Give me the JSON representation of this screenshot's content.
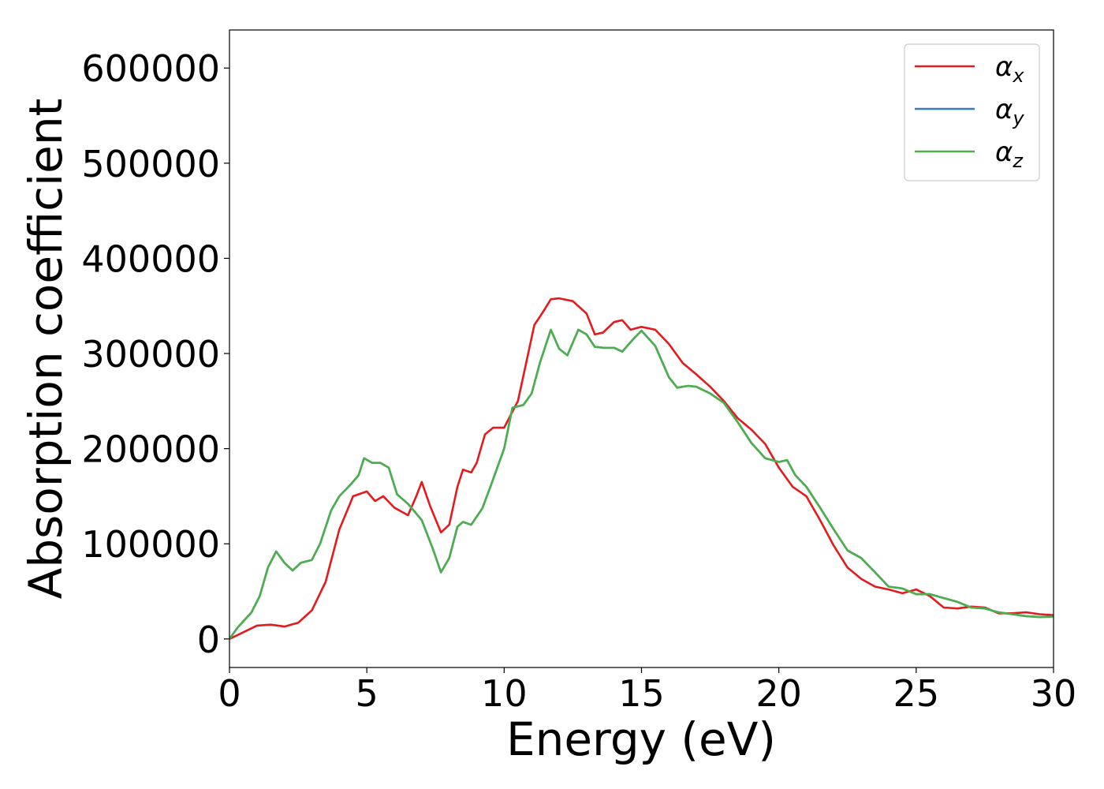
{
  "chart_data": {
    "type": "line",
    "xlabel": "Energy (eV)",
    "ylabel": "Absorption coefficient",
    "xlim": [
      0,
      30
    ],
    "ylim": [
      -30000,
      640000
    ],
    "xticks": [
      "0",
      "5",
      "10",
      "15",
      "20",
      "25",
      "30"
    ],
    "xtick_values": [
      0,
      5,
      10,
      15,
      20,
      25,
      30
    ],
    "yticks": [
      "0",
      "100000",
      "200000",
      "300000",
      "400000",
      "500000",
      "600000"
    ],
    "ytick_values": [
      0,
      100000,
      200000,
      300000,
      400000,
      500000,
      600000
    ],
    "grid": false,
    "legend_position": "top-right",
    "series": [
      {
        "name": "α_x",
        "legend_symbol": "α",
        "legend_sub": "x",
        "color": "#e41a1c",
        "points": [
          [
            0,
            0
          ],
          [
            0.5,
            7000
          ],
          [
            1.0,
            14000
          ],
          [
            1.5,
            15000
          ],
          [
            2.0,
            13000
          ],
          [
            2.5,
            17000
          ],
          [
            3.0,
            30000
          ],
          [
            3.5,
            60000
          ],
          [
            4.0,
            115000
          ],
          [
            4.5,
            150000
          ],
          [
            5.0,
            155000
          ],
          [
            5.3,
            145000
          ],
          [
            5.6,
            150000
          ],
          [
            6.0,
            138000
          ],
          [
            6.5,
            130000
          ],
          [
            6.8,
            150000
          ],
          [
            7.0,
            165000
          ],
          [
            7.3,
            140000
          ],
          [
            7.7,
            112000
          ],
          [
            8.0,
            120000
          ],
          [
            8.3,
            160000
          ],
          [
            8.5,
            178000
          ],
          [
            8.8,
            175000
          ],
          [
            9.0,
            185000
          ],
          [
            9.3,
            215000
          ],
          [
            9.6,
            222000
          ],
          [
            10.0,
            222000
          ],
          [
            10.5,
            250000
          ],
          [
            10.8,
            290000
          ],
          [
            11.1,
            330000
          ],
          [
            11.4,
            343000
          ],
          [
            11.7,
            357000
          ],
          [
            12.0,
            358000
          ],
          [
            12.5,
            355000
          ],
          [
            13.0,
            342000
          ],
          [
            13.3,
            320000
          ],
          [
            13.6,
            322000
          ],
          [
            14.0,
            333000
          ],
          [
            14.3,
            335000
          ],
          [
            14.6,
            325000
          ],
          [
            15.0,
            328000
          ],
          [
            15.5,
            325000
          ],
          [
            16.0,
            310000
          ],
          [
            16.5,
            290000
          ],
          [
            17.0,
            278000
          ],
          [
            17.5,
            265000
          ],
          [
            18.0,
            250000
          ],
          [
            18.5,
            232000
          ],
          [
            19.0,
            220000
          ],
          [
            19.5,
            205000
          ],
          [
            20.0,
            180000
          ],
          [
            20.5,
            160000
          ],
          [
            21.0,
            150000
          ],
          [
            21.5,
            125000
          ],
          [
            22.0,
            98000
          ],
          [
            22.5,
            75000
          ],
          [
            23.0,
            63000
          ],
          [
            23.5,
            55000
          ],
          [
            24.0,
            52000
          ],
          [
            24.5,
            48000
          ],
          [
            25.0,
            52000
          ],
          [
            25.5,
            45000
          ],
          [
            26.0,
            33000
          ],
          [
            26.5,
            32000
          ],
          [
            27.0,
            34000
          ],
          [
            27.5,
            33000
          ],
          [
            28.0,
            27000
          ],
          [
            28.5,
            27000
          ],
          [
            29.0,
            28000
          ],
          [
            29.5,
            26000
          ],
          [
            30.0,
            25000
          ]
        ]
      },
      {
        "name": "α_y",
        "legend_symbol": "α",
        "legend_sub": "y",
        "color": "#377eb8",
        "points": [
          [
            0,
            0
          ],
          [
            0.3,
            12000
          ],
          [
            0.8,
            28000
          ],
          [
            1.1,
            45000
          ],
          [
            1.4,
            75000
          ],
          [
            1.7,
            92000
          ],
          [
            2.0,
            80000
          ],
          [
            2.3,
            72000
          ],
          [
            2.6,
            80000
          ],
          [
            3.0,
            83000
          ],
          [
            3.3,
            100000
          ],
          [
            3.7,
            135000
          ],
          [
            4.0,
            150000
          ],
          [
            4.4,
            162000
          ],
          [
            4.7,
            172000
          ],
          [
            4.9,
            190000
          ],
          [
            5.2,
            185000
          ],
          [
            5.5,
            185000
          ],
          [
            5.8,
            180000
          ],
          [
            6.1,
            152000
          ],
          [
            6.5,
            142000
          ],
          [
            7.0,
            125000
          ],
          [
            7.4,
            95000
          ],
          [
            7.7,
            70000
          ],
          [
            8.0,
            85000
          ],
          [
            8.3,
            118000
          ],
          [
            8.5,
            123000
          ],
          [
            8.8,
            120000
          ],
          [
            9.2,
            137000
          ],
          [
            9.5,
            160000
          ],
          [
            10.0,
            200000
          ],
          [
            10.3,
            243000
          ],
          [
            10.7,
            246000
          ],
          [
            11.0,
            258000
          ],
          [
            11.3,
            290000
          ],
          [
            11.7,
            325000
          ],
          [
            12.0,
            305000
          ],
          [
            12.3,
            298000
          ],
          [
            12.7,
            325000
          ],
          [
            13.0,
            320000
          ],
          [
            13.3,
            307000
          ],
          [
            13.6,
            306000
          ],
          [
            14.0,
            306000
          ],
          [
            14.3,
            302000
          ],
          [
            14.7,
            315000
          ],
          [
            15.0,
            324000
          ],
          [
            15.5,
            308000
          ],
          [
            16.0,
            275000
          ],
          [
            16.3,
            264000
          ],
          [
            16.7,
            266000
          ],
          [
            17.0,
            265000
          ],
          [
            17.5,
            258000
          ],
          [
            18.0,
            248000
          ],
          [
            18.5,
            228000
          ],
          [
            19.0,
            206000
          ],
          [
            19.5,
            190000
          ],
          [
            20.0,
            186000
          ],
          [
            20.3,
            188000
          ],
          [
            20.6,
            172000
          ],
          [
            21.0,
            160000
          ],
          [
            21.5,
            138000
          ],
          [
            22.0,
            115000
          ],
          [
            22.5,
            93000
          ],
          [
            23.0,
            85000
          ],
          [
            23.5,
            70000
          ],
          [
            24.0,
            55000
          ],
          [
            24.5,
            53000
          ],
          [
            25.0,
            47000
          ],
          [
            25.5,
            47000
          ],
          [
            26.0,
            43000
          ],
          [
            26.5,
            39000
          ],
          [
            27.0,
            33000
          ],
          [
            27.5,
            32000
          ],
          [
            28.0,
            28000
          ],
          [
            28.5,
            26000
          ],
          [
            29.0,
            24000
          ],
          [
            29.5,
            23000
          ],
          [
            30.0,
            23500
          ]
        ]
      },
      {
        "name": "α_z",
        "legend_symbol": "α",
        "legend_sub": "z",
        "color": "#4daf4a",
        "points": [
          [
            0,
            0
          ],
          [
            0.3,
            12000
          ],
          [
            0.8,
            28000
          ],
          [
            1.1,
            45000
          ],
          [
            1.4,
            75000
          ],
          [
            1.7,
            92000
          ],
          [
            2.0,
            80000
          ],
          [
            2.3,
            72000
          ],
          [
            2.6,
            80000
          ],
          [
            3.0,
            83000
          ],
          [
            3.3,
            100000
          ],
          [
            3.7,
            135000
          ],
          [
            4.0,
            150000
          ],
          [
            4.4,
            162000
          ],
          [
            4.7,
            172000
          ],
          [
            4.9,
            190000
          ],
          [
            5.2,
            185000
          ],
          [
            5.5,
            185000
          ],
          [
            5.8,
            180000
          ],
          [
            6.1,
            152000
          ],
          [
            6.5,
            142000
          ],
          [
            7.0,
            125000
          ],
          [
            7.4,
            95000
          ],
          [
            7.7,
            70000
          ],
          [
            8.0,
            85000
          ],
          [
            8.3,
            118000
          ],
          [
            8.5,
            123000
          ],
          [
            8.8,
            120000
          ],
          [
            9.2,
            137000
          ],
          [
            9.5,
            160000
          ],
          [
            10.0,
            200000
          ],
          [
            10.3,
            243000
          ],
          [
            10.7,
            246000
          ],
          [
            11.0,
            258000
          ],
          [
            11.3,
            290000
          ],
          [
            11.7,
            325000
          ],
          [
            12.0,
            305000
          ],
          [
            12.3,
            298000
          ],
          [
            12.7,
            325000
          ],
          [
            13.0,
            320000
          ],
          [
            13.3,
            307000
          ],
          [
            13.6,
            306000
          ],
          [
            14.0,
            306000
          ],
          [
            14.3,
            302000
          ],
          [
            14.7,
            315000
          ],
          [
            15.0,
            324000
          ],
          [
            15.5,
            308000
          ],
          [
            16.0,
            275000
          ],
          [
            16.3,
            264000
          ],
          [
            16.7,
            266000
          ],
          [
            17.0,
            265000
          ],
          [
            17.5,
            258000
          ],
          [
            18.0,
            248000
          ],
          [
            18.5,
            228000
          ],
          [
            19.0,
            206000
          ],
          [
            19.5,
            190000
          ],
          [
            20.0,
            186000
          ],
          [
            20.3,
            188000
          ],
          [
            20.6,
            172000
          ],
          [
            21.0,
            160000
          ],
          [
            21.5,
            138000
          ],
          [
            22.0,
            115000
          ],
          [
            22.5,
            93000
          ],
          [
            23.0,
            85000
          ],
          [
            23.5,
            70000
          ],
          [
            24.0,
            55000
          ],
          [
            24.5,
            53000
          ],
          [
            25.0,
            47000
          ],
          [
            25.5,
            47000
          ],
          [
            26.0,
            43000
          ],
          [
            26.5,
            39000
          ],
          [
            27.0,
            33000
          ],
          [
            27.5,
            32000
          ],
          [
            28.0,
            28000
          ],
          [
            28.5,
            26000
          ],
          [
            29.0,
            24000
          ],
          [
            29.5,
            23000
          ],
          [
            30.0,
            23500
          ]
        ]
      }
    ]
  }
}
